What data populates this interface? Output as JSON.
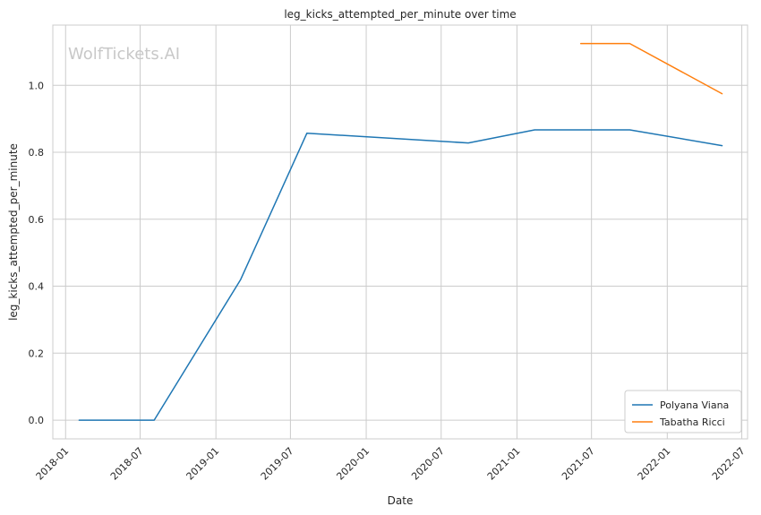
{
  "watermark": "WolfTickets.AI",
  "chart_data": {
    "type": "line",
    "title": "leg_kicks_attempted_per_minute over time",
    "xlabel": "Date",
    "ylabel": "leg_kicks_attempted_per_minute",
    "x_ticks": [
      "2018-01",
      "2018-07",
      "2019-01",
      "2019-07",
      "2020-01",
      "2020-07",
      "2021-01",
      "2021-07",
      "2022-01",
      "2022-07"
    ],
    "y_ticks": [
      0.0,
      0.2,
      0.4,
      0.6,
      0.8,
      1.0
    ],
    "y_tick_labels": [
      "0.0",
      "0.2",
      "0.4",
      "0.6",
      "0.8",
      "1.0"
    ],
    "xlim": [
      "2017-12-01",
      "2022-07-15"
    ],
    "ylim": [
      -0.056,
      1.18
    ],
    "grid": true,
    "legend_position": "bottom-right",
    "series": [
      {
        "name": "Polyana Viana",
        "color": "#1f77b4",
        "points": [
          {
            "x": "2018-02-03",
            "y": 0.0
          },
          {
            "x": "2018-08-04",
            "y": 0.0
          },
          {
            "x": "2019-03-02",
            "y": 0.42
          },
          {
            "x": "2019-08-10",
            "y": 0.857
          },
          {
            "x": "2020-09-05",
            "y": 0.828
          },
          {
            "x": "2021-02-13",
            "y": 0.867
          },
          {
            "x": "2021-10-02",
            "y": 0.867
          },
          {
            "x": "2022-05-14",
            "y": 0.82
          }
        ]
      },
      {
        "name": "Tabatha Ricci",
        "color": "#ff7f0e",
        "points": [
          {
            "x": "2021-06-05",
            "y": 1.125
          },
          {
            "x": "2021-10-02",
            "y": 1.125
          },
          {
            "x": "2022-05-14",
            "y": 0.975
          }
        ]
      }
    ]
  }
}
